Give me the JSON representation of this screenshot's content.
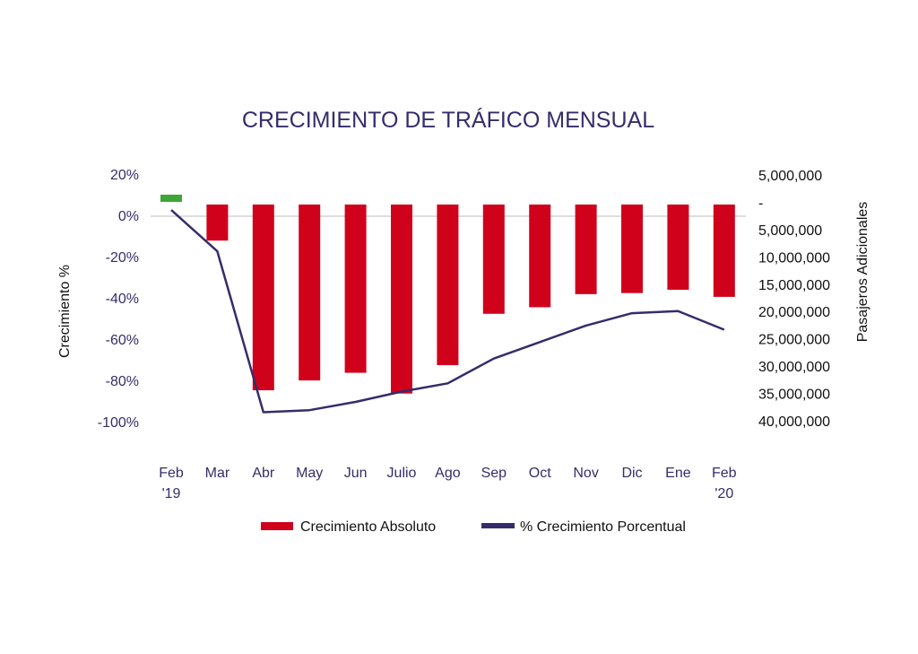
{
  "chart_data": {
    "type": "bar",
    "title": "CRECIMIENTO DE TRÁFICO MENSUAL",
    "ylabel_left": "Crecimiento %",
    "ylabel_right": "Pasajeros Adicionales",
    "categories": [
      [
        "Feb",
        "'19"
      ],
      [
        "Mar"
      ],
      [
        "Abr"
      ],
      [
        "May"
      ],
      [
        "Jun"
      ],
      [
        "Julio"
      ],
      [
        "Ago"
      ],
      [
        "Sep"
      ],
      [
        "Oct"
      ],
      [
        "Nov"
      ],
      [
        "Dic"
      ],
      [
        "Ene"
      ],
      [
        "Feb",
        "'20"
      ]
    ],
    "left_axis": {
      "ticks": [
        "20%",
        "0%",
        "-20%",
        "-40%",
        "-60%",
        "-80%",
        "-100%"
      ],
      "tick_values": [
        20,
        0,
        -20,
        -40,
        -60,
        -80,
        -100
      ],
      "ylim": [
        -100,
        20
      ]
    },
    "right_axis": {
      "ticks": [
        "5,000,000",
        "-",
        "5,000,000",
        "10,000,000",
        "15,000,000",
        "20,000,000",
        "25,000,000",
        "30,000,000",
        "35,000,000",
        "40,000,000"
      ],
      "tick_values": [
        5000000,
        0,
        -5000000,
        -10000000,
        -15000000,
        -20000000,
        -25000000,
        -30000000,
        -35000000,
        -40000000
      ],
      "ylim": [
        -40000000,
        5000000
      ]
    },
    "series": [
      {
        "name": "Crecimiento Absoluto",
        "type": "bar",
        "axis": "right",
        "color": "#d0021b",
        "positive_color": "#3fa535",
        "values": [
          300000,
          -6600000,
          -34000000,
          -32200000,
          -30800000,
          -34600000,
          -29400000,
          -20000000,
          -18800000,
          -16400000,
          -16200000,
          -15600000,
          -16900000
        ]
      },
      {
        "name": "% Crecimiento Porcentual",
        "type": "line",
        "axis": "left",
        "color": "#352d6b",
        "values": [
          3,
          -17,
          -95,
          -94,
          -90,
          -85,
          -81,
          -69,
          -61,
          -53,
          -47,
          -46,
          -55
        ]
      }
    ],
    "legend": {
      "position": "bottom",
      "items": [
        "Crecimiento Absoluto",
        "% Crecimiento Porcentual"
      ]
    }
  }
}
